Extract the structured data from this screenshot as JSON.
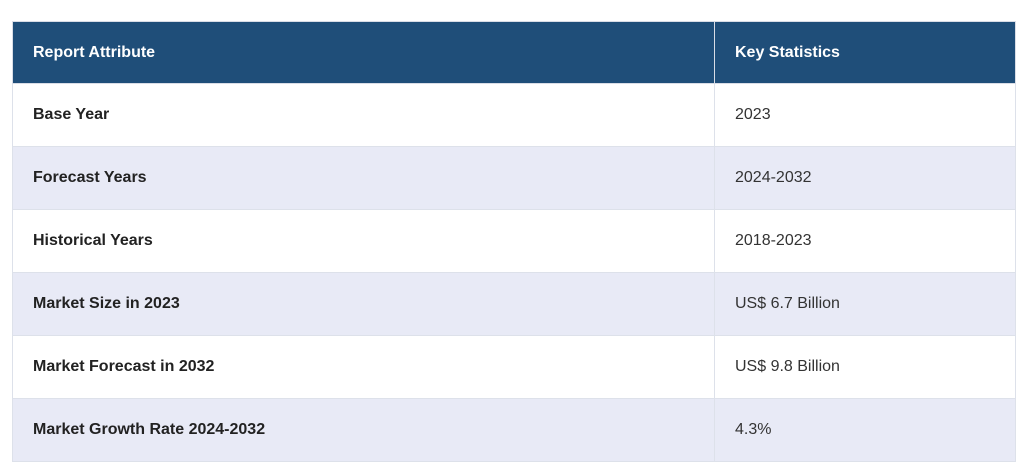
{
  "table": {
    "headers": [
      "Report Attribute",
      "Key Statistics"
    ],
    "rows": [
      [
        "Base Year",
        "2023"
      ],
      [
        "Forecast Years",
        "2024-2032"
      ],
      [
        "Historical Years",
        "2018-2023"
      ],
      [
        "Market Size in 2023",
        "US$ 6.7 Billion"
      ],
      [
        "Market Forecast in 2032",
        "US$ 9.8 Billion"
      ],
      [
        "Market Growth Rate 2024-2032",
        "4.3%"
      ]
    ]
  },
  "colors": {
    "header_bg": "#1f4e79",
    "header_text": "#ffffff",
    "stripe_bg": "#e8eaf6",
    "border": "#dde1ea"
  }
}
